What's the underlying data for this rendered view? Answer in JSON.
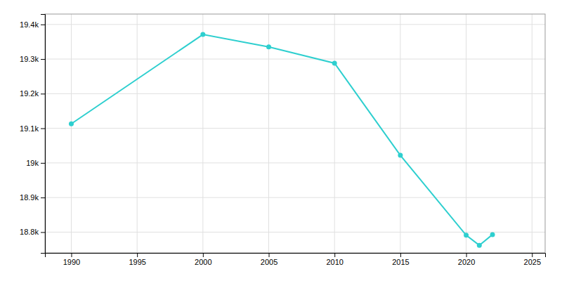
{
  "chart_data": {
    "type": "line",
    "x": [
      1990,
      2000,
      2005,
      2010,
      2015,
      2020,
      2021,
      2022
    ],
    "values": [
      19113,
      19371,
      19335,
      19288,
      19022,
      18791,
      18762,
      18793
    ],
    "color": "#2ecfcf",
    "marker": "circle",
    "xlim": [
      1988,
      2026
    ],
    "xticks": [
      1990,
      1995,
      2000,
      2005,
      2010,
      2015,
      2020,
      2025
    ],
    "ylim": [
      18740,
      19430
    ],
    "yticks": [
      {
        "value": 18800,
        "label": "18.8k"
      },
      {
        "value": 18900,
        "label": "18.9k"
      },
      {
        "value": 19000,
        "label": "19k"
      },
      {
        "value": 19100,
        "label": "19.1k"
      },
      {
        "value": 19200,
        "label": "19.2k"
      },
      {
        "value": 19300,
        "label": "19.3k"
      },
      {
        "value": 19400,
        "label": "19.4k"
      }
    ],
    "grid": true
  }
}
